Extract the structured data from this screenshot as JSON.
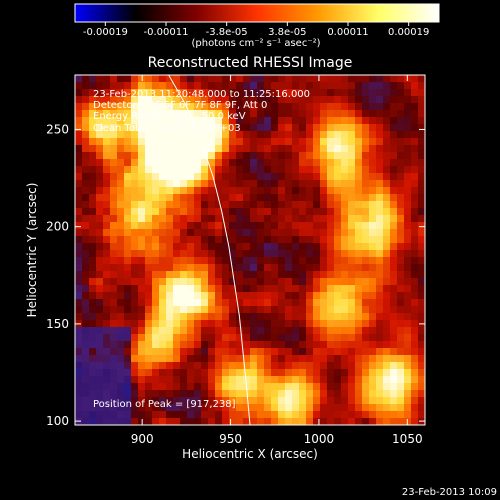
{
  "chart_data": {
    "type": "heatmap",
    "title": "Reconstructed RHESSI Image",
    "xlabel": "Heliocentric X (arcsec)",
    "ylabel": "Heliocentric Y (arcsec)",
    "xlim": [
      862,
      1060
    ],
    "ylim": [
      98,
      278
    ],
    "x_ticks": [
      900,
      950,
      1000,
      1050
    ],
    "y_ticks": [
      100,
      150,
      200,
      250
    ],
    "colorbar": {
      "ticks": [
        "-0.00019",
        "-0.00011",
        "-3.8e-05",
        "3.8e-05",
        "0.00011",
        "0.00019"
      ],
      "label": "(photons cm⁻² s⁻¹ asec⁻²)",
      "colors": [
        "#0000ff",
        "#000000",
        "#7f0000",
        "#ff3300",
        "#ff9900",
        "#ffff66",
        "#ffffff"
      ]
    },
    "annotations": [
      "23-Feb-2013 11:20:48.000 to 11:25:16.000",
      "Detectors: 3F 5F 6F 7F 8F 9F, Att 0",
      "Energy Range: 25.0 - 50.0 keV",
      "Clean    Total counts: 6.74E+03"
    ],
    "peak_label": "Position of Peak = [917,238]",
    "peak": [
      917,
      238
    ],
    "limb_curve": [
      [
        915,
        278
      ],
      [
        925,
        262
      ],
      [
        933,
        245
      ],
      [
        940,
        226
      ],
      [
        945,
        208
      ],
      [
        949,
        190
      ],
      [
        952,
        172
      ],
      [
        955,
        154
      ],
      [
        957,
        136
      ],
      [
        959,
        118
      ],
      [
        961,
        98
      ]
    ],
    "bright_sources": [
      {
        "x": 920,
        "y": 238,
        "sigma": 12,
        "amp": 1.0
      },
      {
        "x": 905,
        "y": 260,
        "sigma": 10,
        "amp": 0.6
      },
      {
        "x": 935,
        "y": 250,
        "sigma": 10,
        "amp": 0.55
      },
      {
        "x": 900,
        "y": 210,
        "sigma": 14,
        "amp": 0.45
      },
      {
        "x": 925,
        "y": 165,
        "sigma": 12,
        "amp": 0.6
      },
      {
        "x": 910,
        "y": 140,
        "sigma": 10,
        "amp": 0.45
      },
      {
        "x": 955,
        "y": 120,
        "sigma": 10,
        "amp": 0.5
      },
      {
        "x": 1010,
        "y": 240,
        "sigma": 12,
        "amp": 0.5
      },
      {
        "x": 1030,
        "y": 200,
        "sigma": 14,
        "amp": 0.5
      },
      {
        "x": 1010,
        "y": 160,
        "sigma": 12,
        "amp": 0.45
      },
      {
        "x": 1040,
        "y": 120,
        "sigma": 12,
        "amp": 0.55
      },
      {
        "x": 985,
        "y": 110,
        "sigma": 10,
        "amp": 0.5
      },
      {
        "x": 880,
        "y": 250,
        "sigma": 10,
        "amp": 0.45
      }
    ]
  },
  "timestamp": "23-Feb-2013 10:09"
}
